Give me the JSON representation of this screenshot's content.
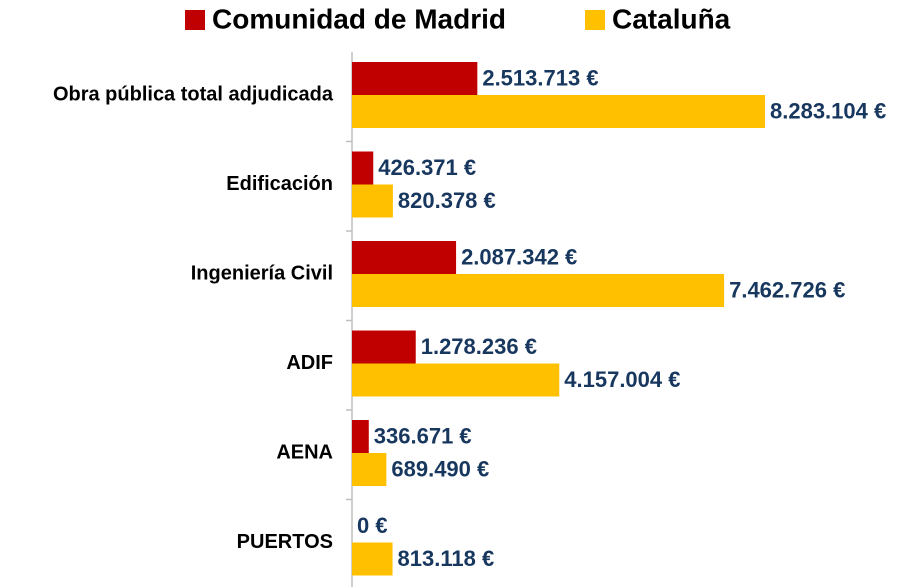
{
  "chart_data": {
    "type": "bar",
    "orientation": "horizontal",
    "categories": [
      "Obra pública total adjudicada",
      "Edificación",
      "Ingeniería Civil",
      "ADIF",
      "AENA",
      "PUERTOS"
    ],
    "series": [
      {
        "name": "Comunidad de Madrid",
        "color": "#c00000",
        "values": [
          2513713,
          426371,
          2087342,
          1278236,
          336671,
          0
        ],
        "value_labels": [
          "2.513.713 €",
          "426.371 €",
          "2.087.342 €",
          "1.278.236 €",
          "336.671 €",
          "0 €"
        ]
      },
      {
        "name": "Cataluña",
        "color": "#ffc000",
        "values": [
          8283104,
          820378,
          7462726,
          4157004,
          689490,
          813118
        ],
        "value_labels": [
          "8.283.104 €",
          "820.378 €",
          "7.462.726 €",
          "4.157.004 €",
          "689.490 €",
          "813.118 €"
        ]
      }
    ],
    "legend": "top"
  }
}
